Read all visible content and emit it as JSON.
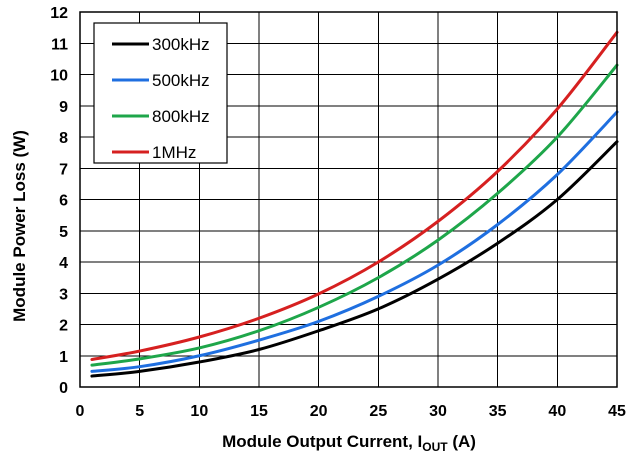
{
  "chart_data": {
    "type": "line",
    "xlabel_main": "Module Output Current, I",
    "xlabel_sub": "OUT",
    "xlabel_unit": " (A)",
    "ylabel": "Module Power Loss (W)",
    "xlim": [
      0,
      45
    ],
    "ylim": [
      0,
      12
    ],
    "xticks": [
      0,
      5,
      10,
      15,
      20,
      25,
      30,
      35,
      40,
      45
    ],
    "yticks": [
      0,
      1,
      2,
      3,
      4,
      5,
      6,
      7,
      8,
      9,
      10,
      11,
      12
    ],
    "grid": true,
    "legend_position": "top-left",
    "x": [
      1,
      5,
      10,
      15,
      20,
      25,
      30,
      35,
      40,
      45
    ],
    "series": [
      {
        "name": "300kHz",
        "color": "#000000",
        "values": [
          0.35,
          0.5,
          0.8,
          1.2,
          1.8,
          2.5,
          3.45,
          4.6,
          6.0,
          7.85
        ]
      },
      {
        "name": "500kHz",
        "color": "#1f6fe0",
        "values": [
          0.5,
          0.65,
          1.0,
          1.5,
          2.1,
          2.9,
          3.9,
          5.2,
          6.8,
          8.8
        ]
      },
      {
        "name": "800kHz",
        "color": "#1ea64a",
        "values": [
          0.7,
          0.9,
          1.25,
          1.8,
          2.55,
          3.5,
          4.7,
          6.2,
          8.0,
          10.3
        ]
      },
      {
        "name": "1MHz",
        "color": "#d62020",
        "values": [
          0.88,
          1.15,
          1.6,
          2.2,
          2.98,
          4.0,
          5.3,
          6.9,
          8.9,
          11.35
        ]
      }
    ]
  }
}
